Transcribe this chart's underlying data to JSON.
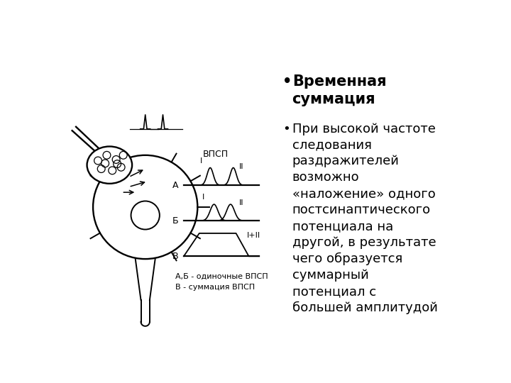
{
  "background_color": "#ffffff",
  "bullet1_bold": "Временная\nсуммация",
  "bullet2_text": "При высокой частоте\nследования\nраздражителей\nвозможно\n«наложение» одного\nпостсинаптического\nпотенциала на\nдругой, в результате\nчего образуется\nсуммарный\nпотенциал с\nбольшей амплитудой",
  "text_color": "#000000",
  "bullet_color": "#000000",
  "font_size_bold": 15,
  "font_size_body": 13,
  "diagram_label_A": "А",
  "diagram_label_B": "Б",
  "diagram_label_V": "В",
  "diagram_label_VPSP": "ВПСП",
  "diagram_label_I": "I",
  "diagram_label_II": "II",
  "diagram_label_IplusII": "I+II",
  "diagram_caption1": "А,Б - одиночные ВПСП",
  "diagram_caption2": "В - суммация ВПСП"
}
